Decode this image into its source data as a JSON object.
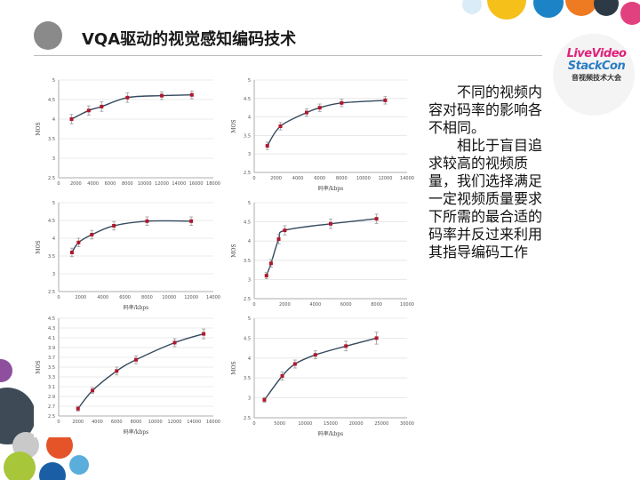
{
  "slide": {
    "title": "VQA驱动的视觉感知编码技术",
    "logo": {
      "line1": "LiveVideo",
      "line2": "StackCon",
      "line3": "音视频技术大会"
    },
    "description": [
      "不同的视频内容对码率的影响各不相同。",
      "相比于盲目追求较高的视频质量，我们选择满足一定视频质量要求下所需的最合适的码率并反过来利用其指导编码工作"
    ],
    "colors": {
      "curve": "#34495e",
      "marker": "#b0182d",
      "errorbar": "#9a9a9a",
      "grid": "#e4e4e4"
    }
  },
  "chart_data": [
    {
      "type": "line",
      "title": "",
      "xlabel": "",
      "ylabel": "MOS",
      "xlim": [
        0,
        18000
      ],
      "ylim": [
        2.5,
        5
      ],
      "xticks": [
        0,
        2000,
        4000,
        6000,
        8000,
        10000,
        12000,
        14000,
        16000,
        18000
      ],
      "yticks": [
        2.5,
        3,
        3.5,
        4,
        4.5,
        5
      ],
      "ytick_labels": [
        "2.5",
        "3",
        "3.5",
        "4",
        "4.5",
        "5"
      ],
      "grid": true,
      "x": [
        1500,
        3500,
        5000,
        8000,
        12000,
        15500
      ],
      "y": [
        4.0,
        4.22,
        4.32,
        4.55,
        4.6,
        4.62
      ],
      "err": [
        0.12,
        0.12,
        0.12,
        0.12,
        0.1,
        0.1
      ]
    },
    {
      "type": "line",
      "title": "",
      "xlabel": "码率/kbps",
      "ylabel": "MOS",
      "xlim": [
        0,
        14000
      ],
      "ylim": [
        2.5,
        5
      ],
      "xticks": [
        0,
        2000,
        4000,
        6000,
        8000,
        10000,
        12000,
        14000
      ],
      "yticks": [
        2.5,
        3,
        3.5,
        4,
        4.5,
        5
      ],
      "ytick_labels": [
        "2.5",
        "3",
        "3.5",
        "4",
        "4.5",
        "5"
      ],
      "grid": true,
      "x": [
        1200,
        2400,
        4800,
        6000,
        8000,
        12000
      ],
      "y": [
        3.22,
        3.75,
        4.12,
        4.25,
        4.38,
        4.45
      ],
      "err": [
        0.1,
        0.1,
        0.1,
        0.1,
        0.1,
        0.1
      ]
    },
    {
      "type": "line",
      "title": "",
      "xlabel": "码率/kbps",
      "ylabel": "MOS",
      "xlim": [
        0,
        14000
      ],
      "ylim": [
        2.5,
        5
      ],
      "xticks": [
        0,
        2000,
        4000,
        6000,
        8000,
        10000,
        12000,
        14000
      ],
      "yticks": [
        2.5,
        3,
        3.5,
        4,
        4.5,
        5
      ],
      "ytick_labels": [
        "2.5",
        "3",
        "3.5",
        "4",
        "4.5",
        "5"
      ],
      "grid": true,
      "x": [
        1200,
        1800,
        3000,
        5000,
        8000,
        12000
      ],
      "y": [
        3.6,
        3.88,
        4.1,
        4.35,
        4.48,
        4.48
      ],
      "err": [
        0.12,
        0.12,
        0.12,
        0.12,
        0.12,
        0.12
      ]
    },
    {
      "type": "line",
      "title": "",
      "xlabel": "",
      "ylabel": "MOS",
      "xlim": [
        0,
        10000
      ],
      "ylim": [
        2.5,
        5
      ],
      "xticks": [
        0,
        2000,
        4000,
        6000,
        8000,
        10000
      ],
      "yticks": [
        2.5,
        3,
        3.5,
        4,
        4.5,
        5
      ],
      "ytick_labels": [
        "2.5",
        "3",
        "3.5",
        "4",
        "4.5",
        "5"
      ],
      "grid": true,
      "x": [
        800,
        1100,
        1600,
        2000,
        5000,
        8000
      ],
      "y": [
        3.1,
        3.42,
        4.05,
        4.28,
        4.45,
        4.58
      ],
      "err": [
        0.08,
        0.1,
        0.12,
        0.12,
        0.12,
        0.12
      ]
    },
    {
      "type": "line",
      "title": "",
      "xlabel": "码率/kbps",
      "ylabel": "MOS",
      "xlim": [
        0,
        16000
      ],
      "ylim": [
        2.5,
        4.5
      ],
      "xticks": [
        0,
        2000,
        4000,
        6000,
        8000,
        10000,
        12000,
        14000,
        16000
      ],
      "yticks": [
        2.5,
        2.7,
        2.9,
        3.1,
        3.3,
        3.5,
        3.7,
        3.9,
        4.1,
        4.3,
        4.5
      ],
      "ytick_labels": [
        "2.5",
        "2.7",
        "2.9",
        "3.1",
        "3.3",
        "3.5",
        "3.7",
        "3.9",
        "4.1",
        "4.3",
        "4.5"
      ],
      "grid": true,
      "x": [
        2000,
        3500,
        6000,
        8000,
        12000,
        15000
      ],
      "y": [
        2.65,
        3.02,
        3.42,
        3.65,
        4.0,
        4.18
      ],
      "err": [
        0.05,
        0.06,
        0.08,
        0.08,
        0.08,
        0.1
      ]
    },
    {
      "type": "line",
      "title": "",
      "xlabel": "码率/kbps",
      "ylabel": "MOS",
      "xlim": [
        0,
        30000
      ],
      "ylim": [
        2.5,
        5
      ],
      "xticks": [
        0,
        5000,
        10000,
        15000,
        20000,
        25000,
        30000
      ],
      "yticks": [
        2.5,
        3,
        3.5,
        4,
        4.5,
        5
      ],
      "ytick_labels": [
        "2.5",
        "3",
        "3.5",
        "4",
        "4.5",
        "5"
      ],
      "grid": true,
      "x": [
        2000,
        5500,
        8000,
        12000,
        18000,
        24000
      ],
      "y": [
        2.95,
        3.55,
        3.85,
        4.08,
        4.3,
        4.5
      ],
      "err": [
        0.06,
        0.1,
        0.1,
        0.1,
        0.12,
        0.15
      ]
    }
  ]
}
